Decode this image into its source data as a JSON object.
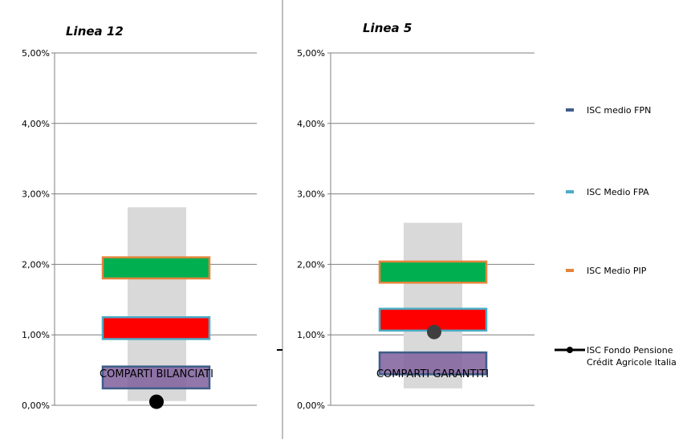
{
  "chart_data": [
    {
      "type": "range-bar",
      "title": "Linea 12",
      "category": "COMPARTI BILANCIATI",
      "ylim": [
        0,
        0.05
      ],
      "y_ticks": [
        "0,00%",
        "1,00%",
        "2,00%",
        "3,00%",
        "4,00%",
        "5,00%"
      ],
      "grid": true,
      "range_band": {
        "low": 0.0006,
        "high": 0.0281
      },
      "series": [
        {
          "name": "ISC medio FPN",
          "low": 0.0024,
          "high": 0.0055
        },
        {
          "name": "ISC Medio FPA",
          "low": 0.0094,
          "high": 0.0125
        },
        {
          "name": "ISC Medio PIP",
          "low": 0.018,
          "high": 0.021
        },
        {
          "name": "ISC Fondo Pensione Crédit Agricole Italia",
          "value": 0.0005
        }
      ]
    },
    {
      "type": "range-bar",
      "title": "Linea 5",
      "category": "COMPARTI  GARANTITI",
      "ylim": [
        0,
        0.05
      ],
      "y_ticks": [
        "0,00%",
        "1,00%",
        "2,00%",
        "3,00%",
        "4,00%",
        "5,00%"
      ],
      "grid": true,
      "range_band": {
        "low": 0.0024,
        "high": 0.0259
      },
      "series": [
        {
          "name": "ISC medio FPN",
          "low": 0.0044,
          "high": 0.0075
        },
        {
          "name": "ISC Medio FPA",
          "low": 0.0106,
          "high": 0.0137
        },
        {
          "name": "ISC Medio PIP",
          "low": 0.0174,
          "high": 0.0204
        },
        {
          "name": "ISC Fondo Pensione Crédit Agricole Italia",
          "value": 0.0104
        }
      ]
    }
  ],
  "legend": {
    "placement": "right",
    "items": [
      {
        "label": "ISC medio FPN",
        "color": "#3f5d8a",
        "marker": "dash"
      },
      {
        "label": "ISC Medio FPA",
        "color": "#4bacc6",
        "marker": "dash"
      },
      {
        "label": "ISC Medio PIP",
        "color": "#e4843c",
        "marker": "dash"
      },
      {
        "label": "ISC Fondo Pensione\nCrédit Agricole Italia",
        "color": "#000000",
        "marker": "line-dot"
      }
    ]
  },
  "colors": {
    "band": "#d9d9d9",
    "fpn_fill": "#7f5f9c",
    "fpn_border": "#3f5d8a",
    "fpa_fill": "#ff0000",
    "fpa_border": "#4bacc6",
    "pip_fill": "#00b050",
    "pip_border": "#e4843c",
    "marker": "#000000",
    "grid": "#7f7f7f",
    "axis": "#7f7f7f"
  }
}
